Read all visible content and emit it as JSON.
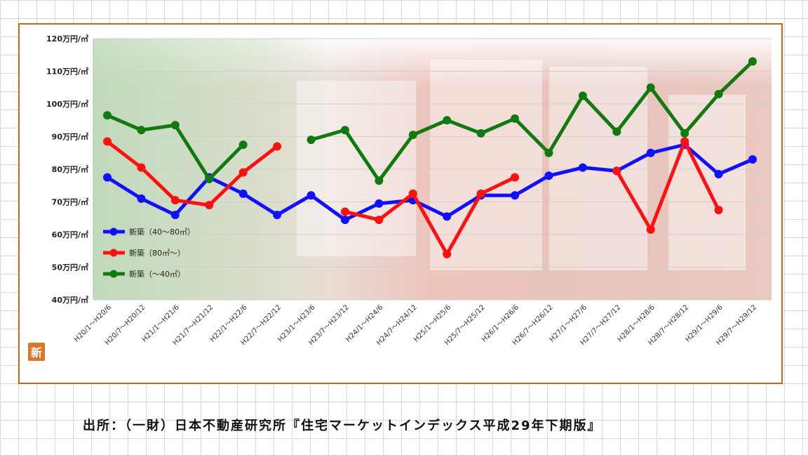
{
  "badge": "新",
  "source": "出所：（一財）日本不動産研究所『住宅マーケットインデックス平成29年下期版』",
  "chart_data": {
    "type": "line",
    "title": "",
    "xlabel": "",
    "ylabel": "",
    "ylim": [
      40,
      120
    ],
    "yticks": [
      "40万円/㎡",
      "50万円/㎡",
      "60万円/㎡",
      "70万円/㎡",
      "80万円/㎡",
      "90万円/㎡",
      "100万円/㎡",
      "110万円/㎡",
      "120万円/㎡"
    ],
    "categories": [
      "H20/1～H20/6",
      "H20/7～H20/12",
      "H21/1～H21/6",
      "H21/7～H21/12",
      "H22/1～H22/6",
      "H22/7～H22/12",
      "H23/1～H23/6",
      "H23/7～H23/12",
      "H24/1～H24/6",
      "H24/7～H24/12",
      "H25/1～H25/6",
      "H25/7～H25/12",
      "H26/1～H26/6",
      "H26/7～H26/12",
      "H27/1～H27/6",
      "H27/7～H27/12",
      "H28/1～H28/6",
      "H28/7～H28/12",
      "H29/1～H29/6",
      "H29/7～H29/12"
    ],
    "grid": true,
    "legend_position": "bottom-left",
    "series": [
      {
        "name": "新築（40～80㎡）",
        "color": "#1010ff",
        "values": [
          77.5,
          71,
          66,
          77.5,
          72.5,
          66,
          72,
          64.5,
          69.5,
          70.5,
          65.5,
          72,
          72,
          78,
          80.5,
          79.5,
          85,
          87.5,
          78.5,
          83
        ]
      },
      {
        "name": "新築（80㎡～）",
        "color": "#ff1010",
        "values": [
          88.5,
          80.5,
          70.5,
          69,
          79,
          87,
          null,
          67,
          64.5,
          72.5,
          54,
          72.5,
          77.5,
          null,
          null,
          79.5,
          61.5,
          88.5,
          67.5,
          null
        ]
      },
      {
        "name": "新築（～40㎡）",
        "color": "#107a10",
        "values": [
          96.5,
          92,
          93.5,
          77,
          87.5,
          null,
          89,
          92,
          76.5,
          90.5,
          95,
          91,
          95.5,
          85,
          102.5,
          91.5,
          105,
          91,
          103,
          113
        ]
      }
    ]
  }
}
